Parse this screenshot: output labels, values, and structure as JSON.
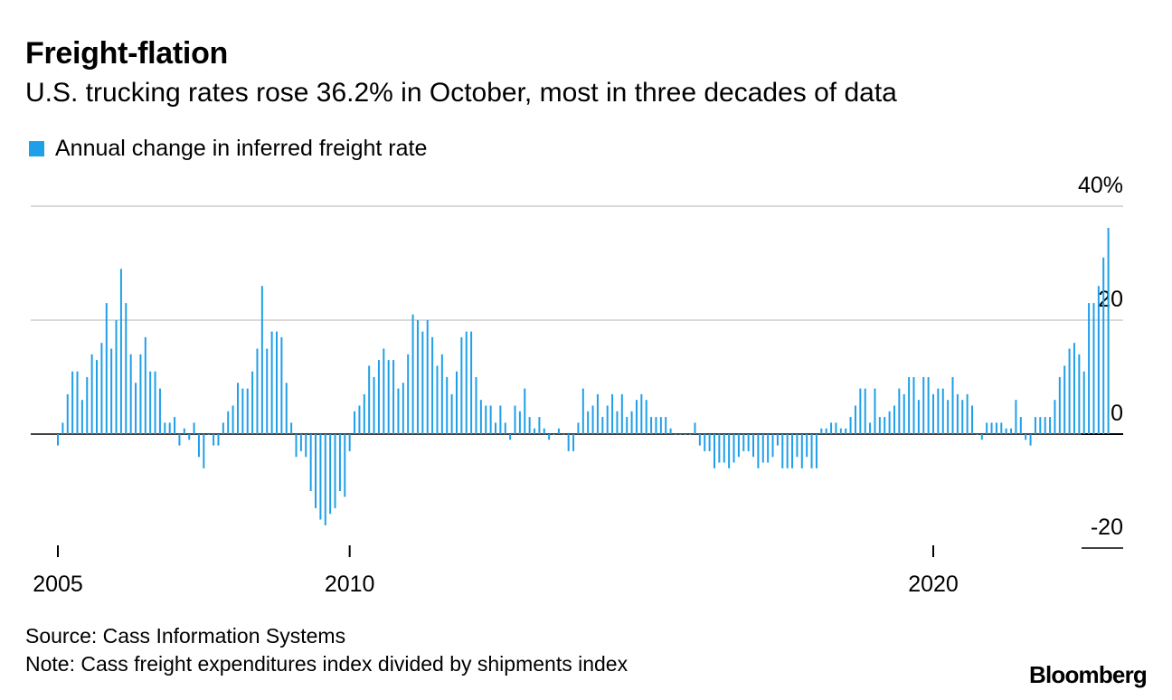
{
  "header": {
    "title": "Freight-flation",
    "subtitle": "U.S. trucking rates rose 36.2% in October, most in three decades of data"
  },
  "legend": {
    "label": "Annual change in inferred freight rate",
    "color": "#1f9fe8"
  },
  "footer": {
    "source": "Source: Cass Information Systems",
    "note": "Note: Cass freight expenditures index divided by shipments index",
    "brand": "Bloomberg"
  },
  "chart_data": {
    "type": "bar",
    "title": "Freight-flation",
    "subtitle": "U.S. trucking rates rose 36.2% in October, most in three decades of data",
    "legend_placement": "top-left",
    "grid": true,
    "color": "#1f9fe8",
    "ylim": [
      -20,
      40
    ],
    "y_ticks": [
      {
        "value": 40,
        "label": "40%"
      },
      {
        "value": 20,
        "label": "20"
      },
      {
        "value": 0,
        "label": "0"
      },
      {
        "value": -20,
        "label": "-20"
      }
    ],
    "x_ticks": [
      {
        "value": 2005,
        "label": "2005"
      },
      {
        "value": 2010,
        "label": "2010"
      },
      {
        "value": 2020,
        "label": "2020"
      }
    ],
    "xlim": [
      2005,
      2022.5
    ],
    "series": [
      {
        "start": 2005,
        "frequency": "monthly",
        "values": [
          -2,
          2,
          7,
          11,
          11,
          6,
          10,
          14,
          13,
          16,
          23,
          15,
          20,
          29,
          23,
          14,
          9,
          14,
          17,
          11,
          11,
          8,
          2,
          2,
          3,
          -2,
          1,
          -1,
          2,
          -4,
          -6,
          0,
          -2,
          -2,
          2,
          4,
          5,
          9,
          8,
          8,
          11,
          15,
          26,
          15,
          18,
          18,
          17,
          9,
          2,
          -4,
          -3,
          -4,
          -10,
          -13,
          -15,
          -16,
          -14,
          -13,
          -10,
          -11,
          -3,
          4,
          5,
          7,
          12,
          10,
          13,
          15,
          13,
          13,
          8,
          9,
          14,
          21,
          20,
          18,
          20,
          17,
          12,
          14,
          10,
          7,
          11,
          17,
          18,
          18,
          10,
          6,
          5,
          5,
          2,
          5,
          2,
          -1,
          5,
          4,
          8,
          3,
          1,
          3,
          1,
          -1,
          0,
          1,
          0,
          -3,
          -3,
          2,
          8,
          4,
          5,
          7,
          3,
          5,
          7,
          4,
          7,
          3,
          4,
          6,
          7,
          6,
          3,
          3,
          3,
          3,
          1,
          0,
          0,
          0,
          0,
          2,
          -2,
          -3,
          -3,
          -6,
          -5,
          -5,
          -6,
          -5,
          -4,
          -3,
          -3,
          -4,
          -6,
          -5,
          -5,
          -4,
          -2,
          -6,
          -6,
          -6,
          -4,
          -6,
          -4,
          -6,
          -6,
          1,
          1,
          2,
          2,
          1,
          1,
          3,
          5,
          8,
          8,
          2,
          8,
          3,
          3,
          4,
          5,
          8,
          7,
          10,
          10,
          6,
          10,
          10,
          7,
          8,
          8,
          6,
          10,
          7,
          6,
          7,
          5,
          0,
          -1,
          2,
          2,
          2,
          2,
          1,
          1,
          6,
          3,
          -1,
          -2,
          3,
          3,
          3,
          3,
          6,
          10,
          12,
          15,
          16,
          14,
          11,
          23,
          23,
          26,
          31,
          36.2
        ]
      }
    ]
  }
}
